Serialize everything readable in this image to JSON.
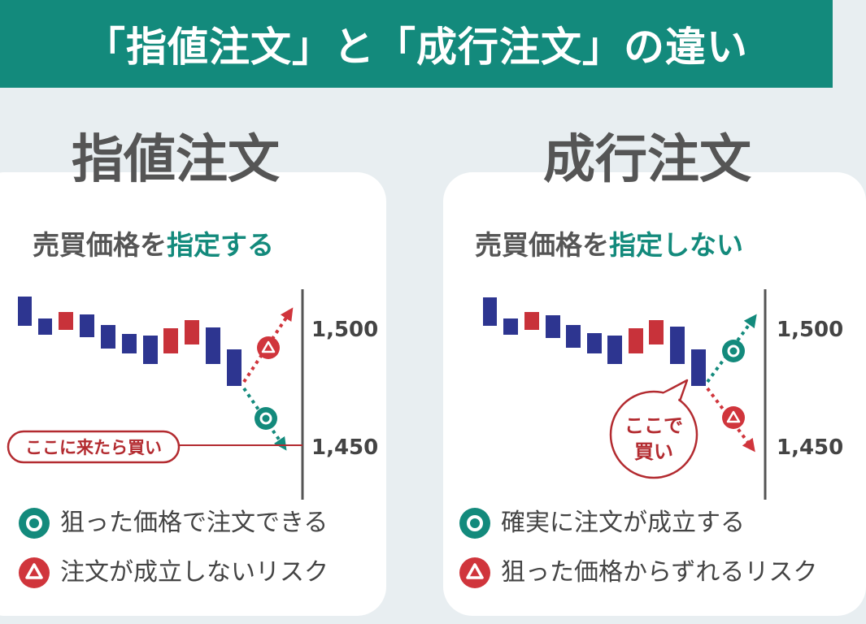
{
  "header": {
    "title": "「指値注文」と「成行注文」の違い"
  },
  "limit": {
    "title": "指値注文",
    "subtitle_prefix": "売買価格を",
    "subtitle_highlight": "指定する",
    "price_high": "1,500",
    "price_low": "1,450",
    "callout": "ここに来たら買い",
    "pro": "狙った価格で注文できる",
    "con": "注文が成立しないリスク"
  },
  "market": {
    "title": "成行注文",
    "subtitle_prefix": "売買価格を",
    "subtitle_highlight": "指定しない",
    "price_high": "1,500",
    "price_low": "1,450",
    "callout_line1": "ここで",
    "callout_line2": "買い",
    "pro": "確実に注文が成立する",
    "con": "狙った価格からずれるリスク"
  },
  "colors": {
    "teal": "#138a7c",
    "red": "#d0353c",
    "dark_red": "#b32b30",
    "navy": "#2d3590",
    "candle_red": "#c8323a"
  }
}
